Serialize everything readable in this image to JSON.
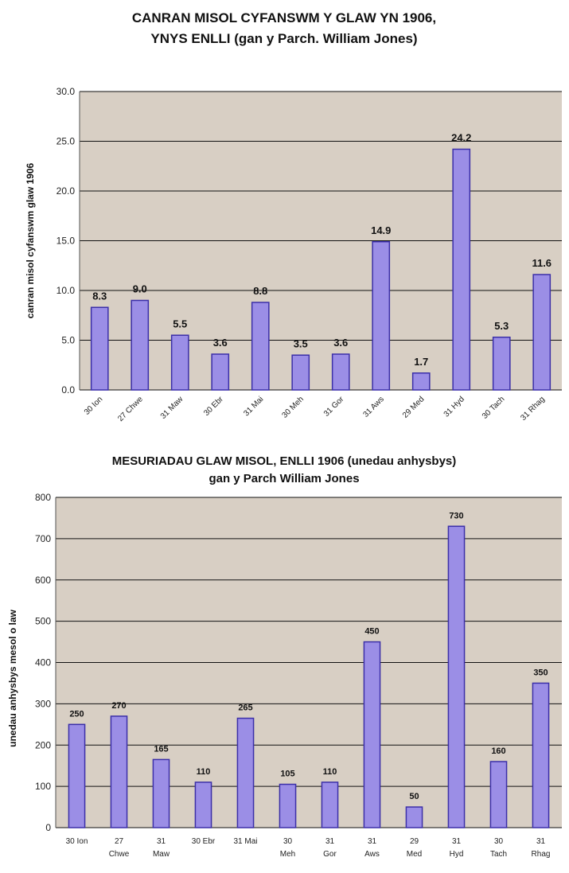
{
  "chart_data": [
    {
      "type": "bar",
      "title_lines": [
        "CANRAN MISOL CYFANSWM Y GLAW YN 1906,",
        "YNYS ENLLI (gan y Parch. William Jones)"
      ],
      "ylabel": "canran misol cyfanswm glaw 1906",
      "xlabel": "",
      "categories": [
        "30 Ion",
        "27 Chwe",
        "31 Maw",
        "30 Ebr",
        "31 Mai",
        "30 Meh",
        "31 Gor",
        "31 Aws",
        "29 Med",
        "31 Hyd",
        "30 Tach",
        "31 Rhag"
      ],
      "values": [
        8.3,
        9.0,
        5.5,
        3.6,
        8.8,
        3.5,
        3.6,
        14.9,
        1.7,
        24.2,
        5.3,
        11.6
      ],
      "value_labels": [
        "8.3",
        "9.0",
        "5.5",
        "3.6",
        "8.8",
        "3.5",
        "3.6",
        "14.9",
        "1.7",
        "24.2",
        "5.3",
        "11.6"
      ],
      "yticks": [
        "0.0",
        "5.0",
        "10.0",
        "15.0",
        "20.0",
        "25.0",
        "30.0"
      ],
      "ylim": [
        0,
        30
      ],
      "grid": true,
      "legend": "none",
      "bar_color": "#9b8ee6",
      "bar_edge": "#3b2fa8",
      "plot_bg": "#d8cfc4"
    },
    {
      "type": "bar",
      "title_lines": [
        "MESURIADAU GLAW MISOL, ENLLI 1906 (unedau anhysbys)",
        "gan y Parch William Jones"
      ],
      "ylabel": "unedau anhysbys mesol o law",
      "xlabel": "",
      "categories": [
        [
          "30 Ion"
        ],
        [
          "27",
          "Chwe"
        ],
        [
          "31",
          "Maw"
        ],
        [
          "30 Ebr"
        ],
        [
          "31 Mai"
        ],
        [
          "30",
          "Meh"
        ],
        [
          "31",
          "Gor"
        ],
        [
          "31",
          "Aws"
        ],
        [
          "29",
          "Med"
        ],
        [
          "31",
          "Hyd"
        ],
        [
          "30",
          "Tach"
        ],
        [
          "31",
          "Rhag"
        ]
      ],
      "values": [
        250,
        270,
        165,
        110,
        265,
        105,
        110,
        450,
        50,
        730,
        160,
        350
      ],
      "value_labels": [
        "250",
        "270",
        "165",
        "110",
        "265",
        "105",
        "110",
        "450",
        "50",
        "730",
        "160",
        "350"
      ],
      "yticks": [
        "0",
        "100",
        "200",
        "300",
        "400",
        "500",
        "600",
        "700",
        "800"
      ],
      "ylim": [
        0,
        800
      ],
      "grid": true,
      "legend": "none",
      "bar_color": "#9b8ee6",
      "bar_edge": "#3b2fa8",
      "plot_bg": "#d8cfc4"
    }
  ]
}
